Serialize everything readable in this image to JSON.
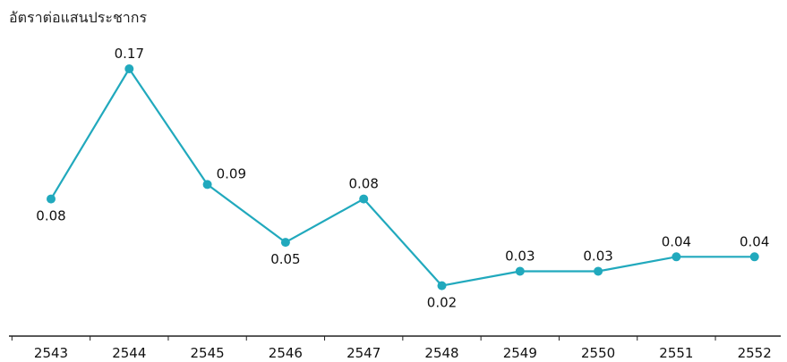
{
  "chart_data": {
    "type": "line",
    "title": "",
    "xlabel": "",
    "ylabel": "อัตราต่อแสนประชากร",
    "categories": [
      "2543",
      "2544",
      "2545",
      "2546",
      "2547",
      "2548",
      "2549",
      "2550",
      "2551",
      "2552"
    ],
    "series": [
      {
        "values": [
          0.08,
          0.17,
          0.09,
          0.05,
          0.08,
          0.02,
          0.03,
          0.03,
          0.04,
          0.04
        ],
        "labels": [
          "0.08",
          "0.17",
          "0.09",
          "0.05",
          "0.08",
          "0.02",
          "0.03",
          "0.03",
          "0.04",
          "0.04"
        ],
        "label_pos": [
          "below",
          "above",
          "above-right",
          "below",
          "above",
          "below",
          "above",
          "above",
          "above",
          "above"
        ]
      }
    ],
    "ylim": [
      0,
      0.2
    ],
    "grid": false,
    "legend": "none",
    "colors": {
      "line": "#21a9bd",
      "axis": "#222222"
    }
  }
}
